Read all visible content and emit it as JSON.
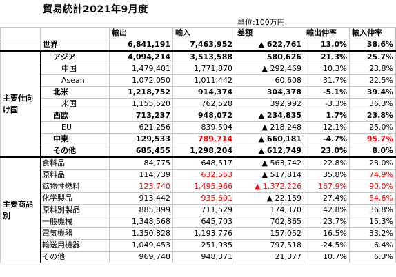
{
  "title": "貿易統計2021年9月度",
  "unit": "単位:100万円",
  "table": {
    "headers": [
      "輸出",
      "輸入",
      "差額",
      "輸出伸率",
      "輸入伸率"
    ],
    "highlight_color": "#ff0000",
    "world": {
      "label": "世界",
      "cells": [
        "6,841,191",
        "7,463,952",
        "▲ 622,761",
        "13.0%",
        "38.6%"
      ]
    },
    "groups": [
      {
        "label": "主要仕向け国",
        "rows": [
          {
            "label": "アジア",
            "level": 1,
            "cells": [
              "4,094,214",
              "3,513,588",
              "580,626",
              "21.3%",
              "25.7%"
            ]
          },
          {
            "label": "中国",
            "level": 2,
            "cells": [
              "1,479,401",
              "1,771,870",
              "▲ 292,469",
              "10.3%",
              "23.8%"
            ]
          },
          {
            "label": "Asean",
            "level": 2,
            "cells": [
              "1,072,050",
              "1,011,442",
              "60,608",
              "31.7%",
              "22.5%"
            ]
          },
          {
            "label": "北米",
            "level": 1,
            "cells": [
              "1,218,752",
              "914,374",
              "304,378",
              "-5.1%",
              "39.4%"
            ]
          },
          {
            "label": "米国",
            "level": 2,
            "cells": [
              "1,155,520",
              "762,528",
              "392,992",
              "-3.3%",
              "36.3%"
            ]
          },
          {
            "label": "西欧",
            "level": 1,
            "cells": [
              "713,237",
              "948,072",
              "▲ 234,835",
              "1.7%",
              "23.8%"
            ]
          },
          {
            "label": "EU",
            "level": 2,
            "cells": [
              "621,256",
              "839,504",
              "▲ 218,248",
              "12.1%",
              "25.0%"
            ]
          },
          {
            "label": "中東",
            "level": 1,
            "cells": [
              "129,533",
              "789,714",
              "▲ 660,181",
              "-4.7%",
              "95.7%"
            ],
            "highlighted": [
              1,
              4
            ]
          },
          {
            "label": "その他",
            "level": 1,
            "cells": [
              "685,455",
              "1,298,204",
              "▲ 612,749",
              "23.0%",
              "8.0%"
            ]
          }
        ]
      },
      {
        "label": "主要商品別",
        "rows": [
          {
            "label": "食料品",
            "level": 3,
            "cells": [
              "84,775",
              "648,517",
              "▲ 563,742",
              "22.8%",
              "23.0%"
            ]
          },
          {
            "label": "原料品",
            "level": 3,
            "cells": [
              "114,739",
              "632,553",
              "▲ 517,814",
              "35.8%",
              "74.9%"
            ],
            "highlighted": [
              1,
              4
            ]
          },
          {
            "label": "鉱物性燃料",
            "level": 3,
            "cells": [
              "123,740",
              "1,495,966",
              "▲ 1,372,226",
              "167.9%",
              "90.0%"
            ],
            "highlighted": [
              0,
              1,
              2,
              3,
              4
            ]
          },
          {
            "label": "化学製品",
            "level": 3,
            "cells": [
              "913,442",
              "935,601",
              "▲ 22,159",
              "27.4%",
              "54.6%"
            ],
            "highlighted": [
              1,
              4
            ]
          },
          {
            "label": "原料別製品",
            "level": 3,
            "cells": [
              "885,899",
              "711,529",
              "174,370",
              "42.8%",
              "36.8%"
            ]
          },
          {
            "label": "一般機械",
            "level": 3,
            "cells": [
              "1,348,568",
              "645,703",
              "702,865",
              "23.7%",
              "15.3%"
            ]
          },
          {
            "label": "電気機器",
            "level": 3,
            "cells": [
              "1,350,828",
              "1,193,776",
              "157,052",
              "16.5%",
              "33.2%"
            ]
          },
          {
            "label": "輸送用機器",
            "level": 3,
            "cells": [
              "1,049,453",
              "251,935",
              "797,518",
              "-24.5%",
              "6.4%"
            ]
          },
          {
            "label": "その他",
            "level": 3,
            "cells": [
              "969,748",
              "948,371",
              "21,377",
              "10.7%",
              "6.3%"
            ]
          }
        ]
      }
    ]
  }
}
